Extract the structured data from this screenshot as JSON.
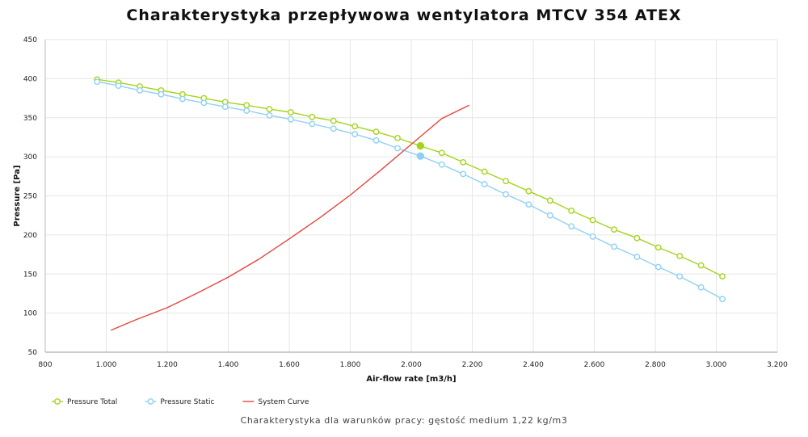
{
  "title": "Charakterystyka przepływowa wentylatora MTCV 354 ATEX",
  "caption": "Charakterystyka dla warunków pracy: gęstość medium 1,22 kg/m3",
  "chart_data": {
    "type": "line",
    "title": "Charakterystyka przepływowa wentylatora MTCV 354 ATEX",
    "xlabel": "Air-flow rate [m3/h]",
    "ylabel": "Pressure [Pa]",
    "xlim": [
      800,
      3200
    ],
    "ylim": [
      50,
      450
    ],
    "x_ticks": [
      800,
      1000,
      1200,
      1400,
      1600,
      1800,
      2000,
      2200,
      2400,
      2600,
      2800,
      3000,
      3200
    ],
    "x_tick_labels": [
      "800",
      "1.000",
      "1.200",
      "1.400",
      "1.600",
      "1.800",
      "2.000",
      "2.200",
      "2.400",
      "2.600",
      "2.800",
      "3.000",
      "3.200"
    ],
    "y_ticks": [
      50,
      100,
      150,
      200,
      250,
      300,
      350,
      400,
      450
    ],
    "y_tick_labels": [
      "50",
      "100",
      "150",
      "200",
      "250",
      "300",
      "350",
      "400",
      "450"
    ],
    "grid": true,
    "legend_position": "bottom-left",
    "series": [
      {
        "name": "Pressure Total",
        "color": "#a4d41c",
        "marker": "open-circle",
        "x": [
          970,
          1040,
          1110,
          1180,
          1250,
          1320,
          1390,
          1460,
          1535,
          1605,
          1675,
          1745,
          1815,
          1885,
          1955,
          2030,
          2100,
          2170,
          2240,
          2310,
          2385,
          2455,
          2525,
          2595,
          2665,
          2740,
          2810,
          2880,
          2950,
          3020
        ],
        "y": [
          399,
          395,
          390,
          385,
          380,
          375,
          370,
          366,
          361,
          357,
          351,
          346,
          339,
          332,
          324,
          314,
          305,
          293,
          281,
          269,
          256,
          244,
          231,
          219,
          207,
          196,
          184,
          173,
          161,
          147
        ]
      },
      {
        "name": "Pressure Static",
        "color": "#8fd0f5",
        "marker": "open-circle",
        "x": [
          970,
          1040,
          1110,
          1180,
          1250,
          1320,
          1390,
          1460,
          1535,
          1605,
          1675,
          1745,
          1815,
          1885,
          1955,
          2030,
          2100,
          2170,
          2240,
          2310,
          2385,
          2455,
          2525,
          2595,
          2665,
          2740,
          2810,
          2880,
          2950,
          3020
        ],
        "y": [
          396,
          391,
          385,
          380,
          374,
          369,
          364,
          359,
          353,
          348,
          342,
          336,
          329,
          321,
          311,
          301,
          290,
          278,
          265,
          252,
          239,
          225,
          211,
          198,
          185,
          172,
          159,
          147,
          133,
          118
        ]
      },
      {
        "name": "System Curve",
        "color": "#e8453c",
        "marker": "none",
        "x": [
          1015,
          1100,
          1200,
          1300,
          1400,
          1500,
          1600,
          1700,
          1800,
          1900,
          2000,
          2100,
          2190
        ],
        "y": [
          78,
          92,
          107,
          126,
          146,
          169,
          195,
          222,
          251,
          283,
          316,
          349,
          366
        ]
      }
    ],
    "operating_points": [
      {
        "series": "Pressure Total",
        "x": 2030,
        "y": 314,
        "color": "#a4d41c"
      },
      {
        "series": "Pressure Static",
        "x": 2030,
        "y": 301,
        "color": "#8fd0f5"
      }
    ]
  }
}
